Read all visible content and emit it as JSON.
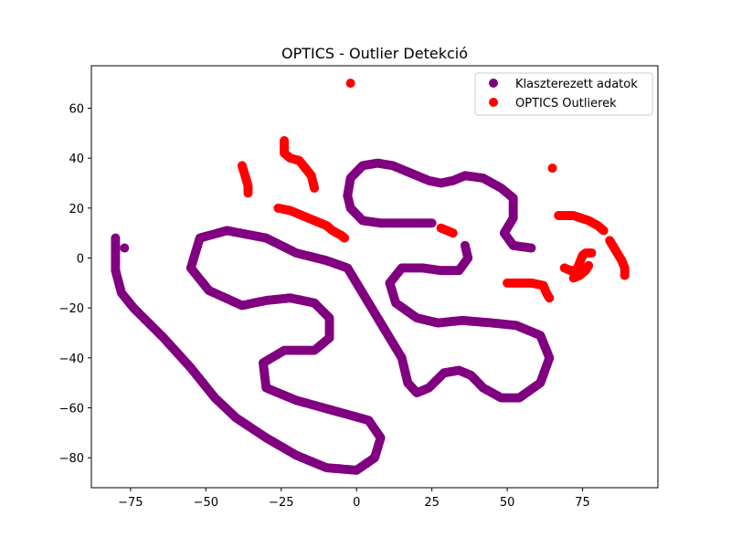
{
  "chart_data": {
    "type": "scatter",
    "title": "OPTICS - Outlier Detekció",
    "xlabel": "",
    "ylabel": "",
    "xlim": [
      -88,
      100
    ],
    "ylim": [
      -92,
      77
    ],
    "xticks": [
      -75,
      -50,
      -25,
      0,
      25,
      50,
      75
    ],
    "yticks": [
      -80,
      -60,
      -40,
      -20,
      0,
      20,
      40,
      60
    ],
    "grid": false,
    "legend_position": "top-right",
    "series": [
      {
        "name": "Klaszterezett adatok",
        "color": "#800080",
        "paths": [
          [
            [
              -80,
              8
            ],
            [
              -80,
              -5
            ],
            [
              -78,
              -14
            ],
            [
              -74,
              -20
            ],
            [
              -64,
              -32
            ],
            [
              -55,
              -44
            ],
            [
              -47,
              -56
            ],
            [
              -40,
              -64
            ],
            [
              -30,
              -72
            ],
            [
              -20,
              -79
            ],
            [
              -10,
              -84
            ],
            [
              0,
              -85
            ],
            [
              6,
              -80
            ],
            [
              8,
              -72
            ],
            [
              4,
              -65
            ],
            [
              -8,
              -61
            ],
            [
              -20,
              -57
            ],
            [
              -30,
              -52
            ],
            [
              -31,
              -42
            ],
            [
              -24,
              -37
            ],
            [
              -14,
              -37
            ],
            [
              -9,
              -32
            ],
            [
              -9,
              -24
            ],
            [
              -14,
              -18
            ],
            [
              -22,
              -16
            ],
            [
              -30,
              -17
            ],
            [
              -38,
              -19
            ],
            [
              -49,
              -13
            ],
            [
              -55,
              -4
            ],
            [
              -52,
              8
            ],
            [
              -43,
              11
            ],
            [
              -30,
              8
            ],
            [
              -20,
              2
            ],
            [
              -10,
              -1
            ],
            [
              -3,
              -4
            ],
            [
              1,
              -12
            ],
            [
              5,
              -20
            ],
            [
              10,
              -30
            ],
            [
              15,
              -40
            ],
            [
              17,
              -50
            ],
            [
              20,
              -54
            ],
            [
              24,
              -52
            ],
            [
              29,
              -46
            ],
            [
              34,
              -45
            ],
            [
              38,
              -47
            ],
            [
              42,
              -52
            ],
            [
              48,
              -56
            ],
            [
              54,
              -56
            ],
            [
              61,
              -50
            ],
            [
              64,
              -40
            ],
            [
              61,
              -31
            ],
            [
              53,
              -27
            ],
            [
              45,
              -26
            ],
            [
              35,
              -25
            ],
            [
              27,
              -26
            ],
            [
              20,
              -24
            ],
            [
              13,
              -18
            ],
            [
              11,
              -10
            ],
            [
              15,
              -4
            ],
            [
              22,
              -4
            ],
            [
              28,
              -5
            ],
            [
              34,
              -5
            ],
            [
              37,
              0
            ],
            [
              36,
              5
            ]
          ],
          [
            [
              -3,
              25
            ],
            [
              -2,
              32
            ],
            [
              2,
              37
            ],
            [
              7,
              38
            ],
            [
              12,
              37
            ],
            [
              16,
              35
            ],
            [
              20,
              33
            ],
            [
              24,
              31
            ],
            [
              28,
              30
            ],
            [
              32,
              31
            ],
            [
              36,
              33
            ],
            [
              42,
              32
            ],
            [
              48,
              28
            ],
            [
              52,
              24
            ],
            [
              52,
              16
            ],
            [
              49,
              10
            ],
            [
              52,
              5
            ],
            [
              58,
              4
            ]
          ],
          [
            [
              -3,
              25
            ],
            [
              -2,
              20
            ],
            [
              2,
              15
            ],
            [
              8,
              14
            ],
            [
              14,
              14
            ],
            [
              19,
              14
            ],
            [
              25,
              14
            ]
          ],
          [
            [
              -77,
              4
            ]
          ]
        ]
      },
      {
        "name": "OPTICS Outlierek",
        "color": "#ff0000",
        "paths": [
          [
            [
              -2,
              70
            ]
          ],
          [
            [
              -38,
              37
            ],
            [
              -37,
              33
            ],
            [
              -36,
              29
            ],
            [
              -36,
              26
            ]
          ],
          [
            [
              -24,
              47
            ],
            [
              -24,
              42
            ],
            [
              -22,
              40
            ],
            [
              -19,
              39
            ],
            [
              -17,
              36
            ],
            [
              -15,
              33
            ],
            [
              -14,
              28
            ]
          ],
          [
            [
              -26,
              20
            ],
            [
              -22,
              19
            ],
            [
              -18,
              17
            ],
            [
              -14,
              15
            ],
            [
              -10,
              13
            ],
            [
              -8,
              11
            ],
            [
              -5,
              9
            ],
            [
              -4,
              8
            ]
          ],
          [
            [
              28,
              12
            ],
            [
              30,
              11
            ],
            [
              32,
              10
            ]
          ],
          [
            [
              65,
              36
            ]
          ],
          [
            [
              67,
              17
            ],
            [
              72,
              17
            ],
            [
              77,
              15
            ],
            [
              80,
              13
            ],
            [
              82,
              11
            ]
          ],
          [
            [
              84,
              7
            ],
            [
              86,
              3
            ],
            [
              88,
              -1
            ],
            [
              89,
              -4
            ],
            [
              89,
              -7
            ]
          ],
          [
            [
              50,
              -10
            ],
            [
              54,
              -10
            ],
            [
              58,
              -10
            ],
            [
              62,
              -11
            ],
            [
              63,
              -14
            ],
            [
              64,
              -16
            ]
          ],
          [
            [
              69,
              -4
            ],
            [
              71,
              -5
            ],
            [
              73,
              -5
            ],
            [
              74,
              -2
            ],
            [
              75,
              1
            ],
            [
              76,
              2
            ],
            [
              78,
              2
            ]
          ],
          [
            [
              72,
              -8
            ],
            [
              74,
              -7
            ],
            [
              76,
              -5
            ],
            [
              77,
              -3
            ]
          ]
        ]
      }
    ]
  }
}
